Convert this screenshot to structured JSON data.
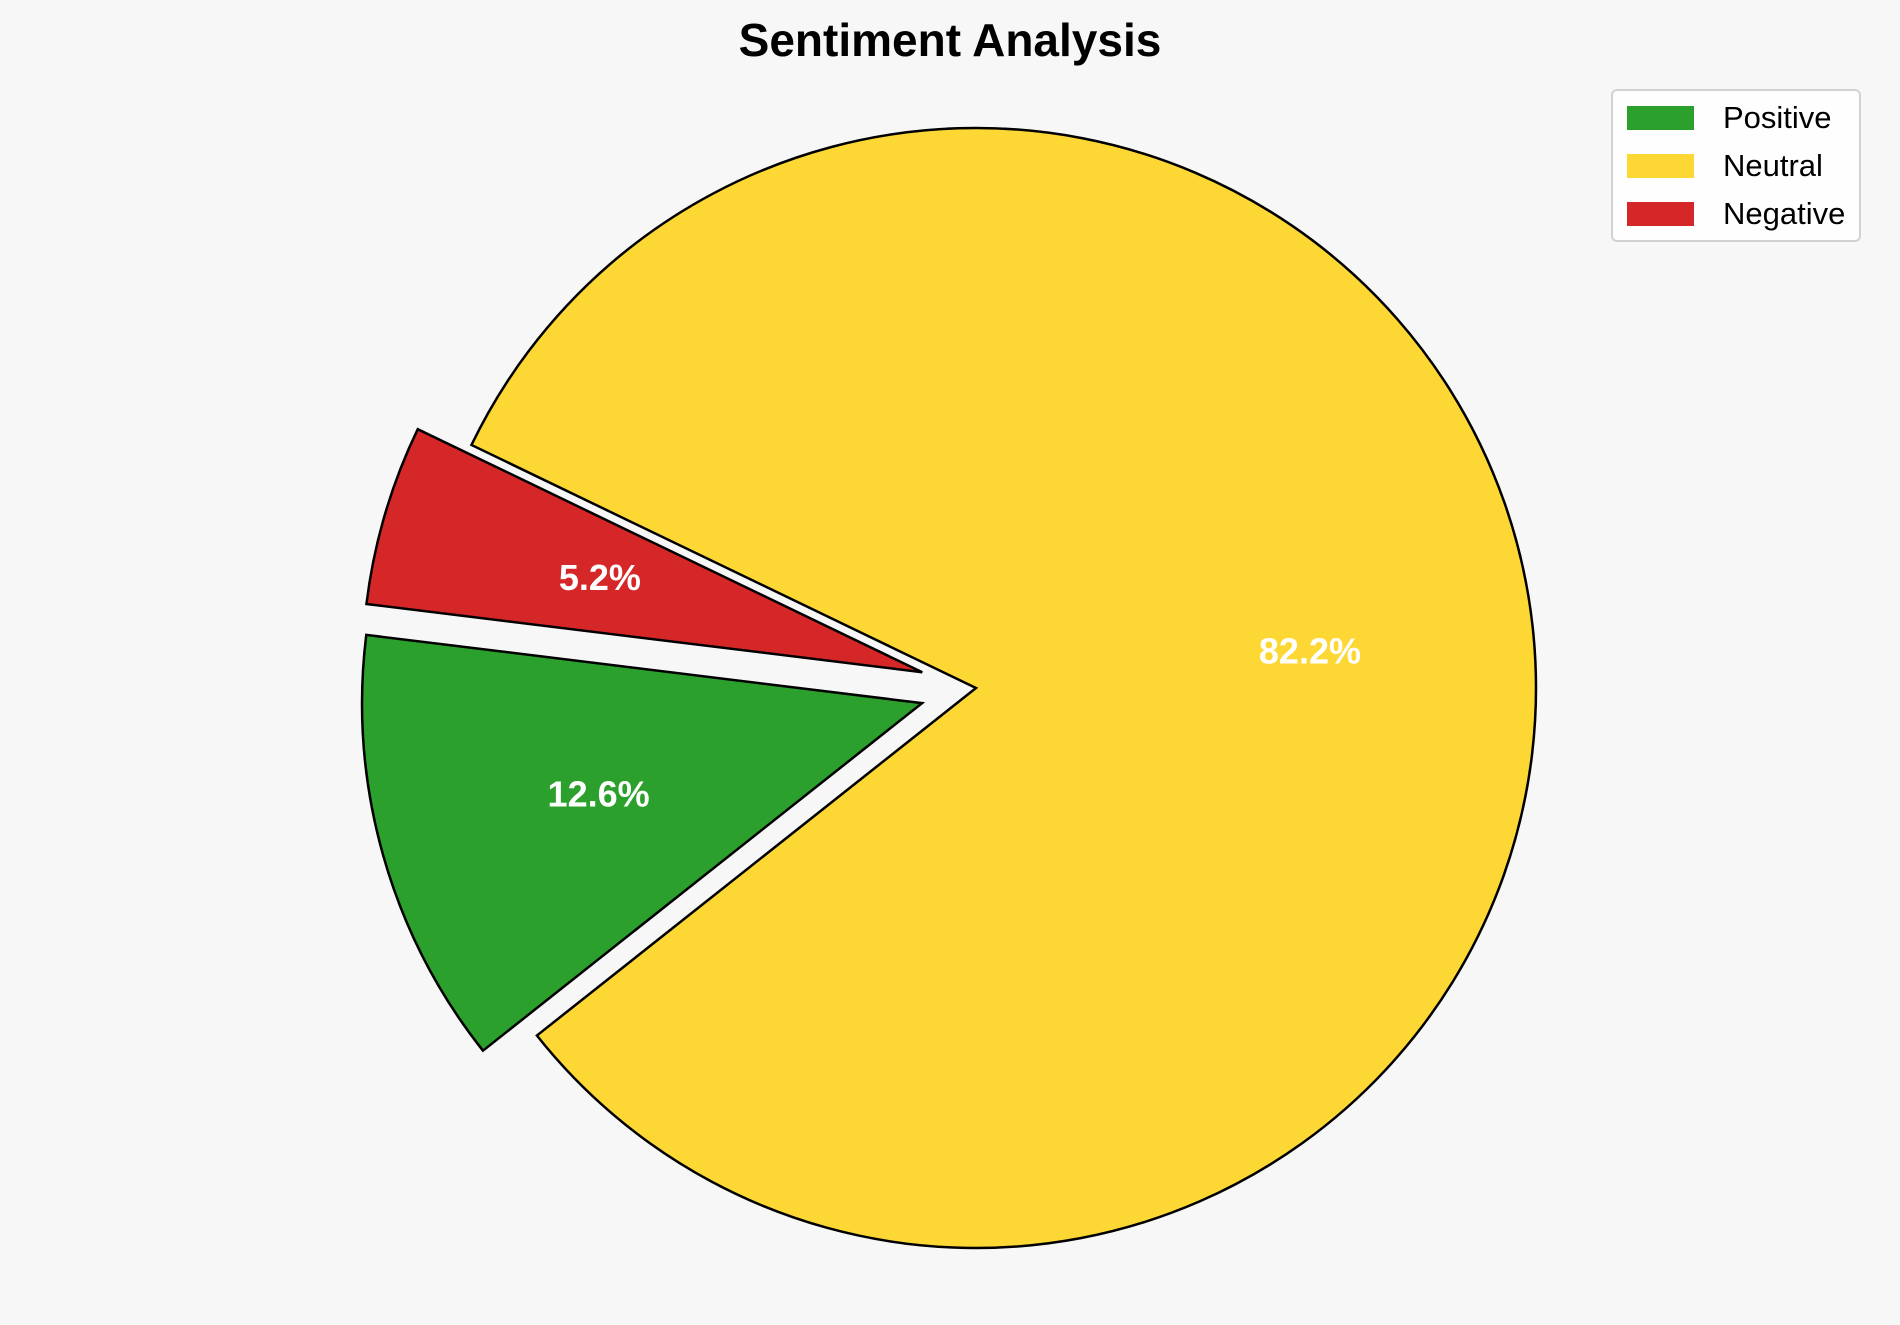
{
  "chart_data": {
    "type": "pie",
    "title": "Sentiment Analysis",
    "categories": [
      "Positive",
      "Neutral",
      "Negative"
    ],
    "values": [
      12.6,
      82.2,
      5.2
    ],
    "labels": [
      "12.6%",
      "82.2%",
      "5.2%"
    ],
    "colors": [
      "#2ca02c",
      "#fdd835",
      "#d62728"
    ],
    "exploded": [
      true,
      false,
      true
    ],
    "legend_position": "top-right",
    "edge_color": "#000000"
  }
}
